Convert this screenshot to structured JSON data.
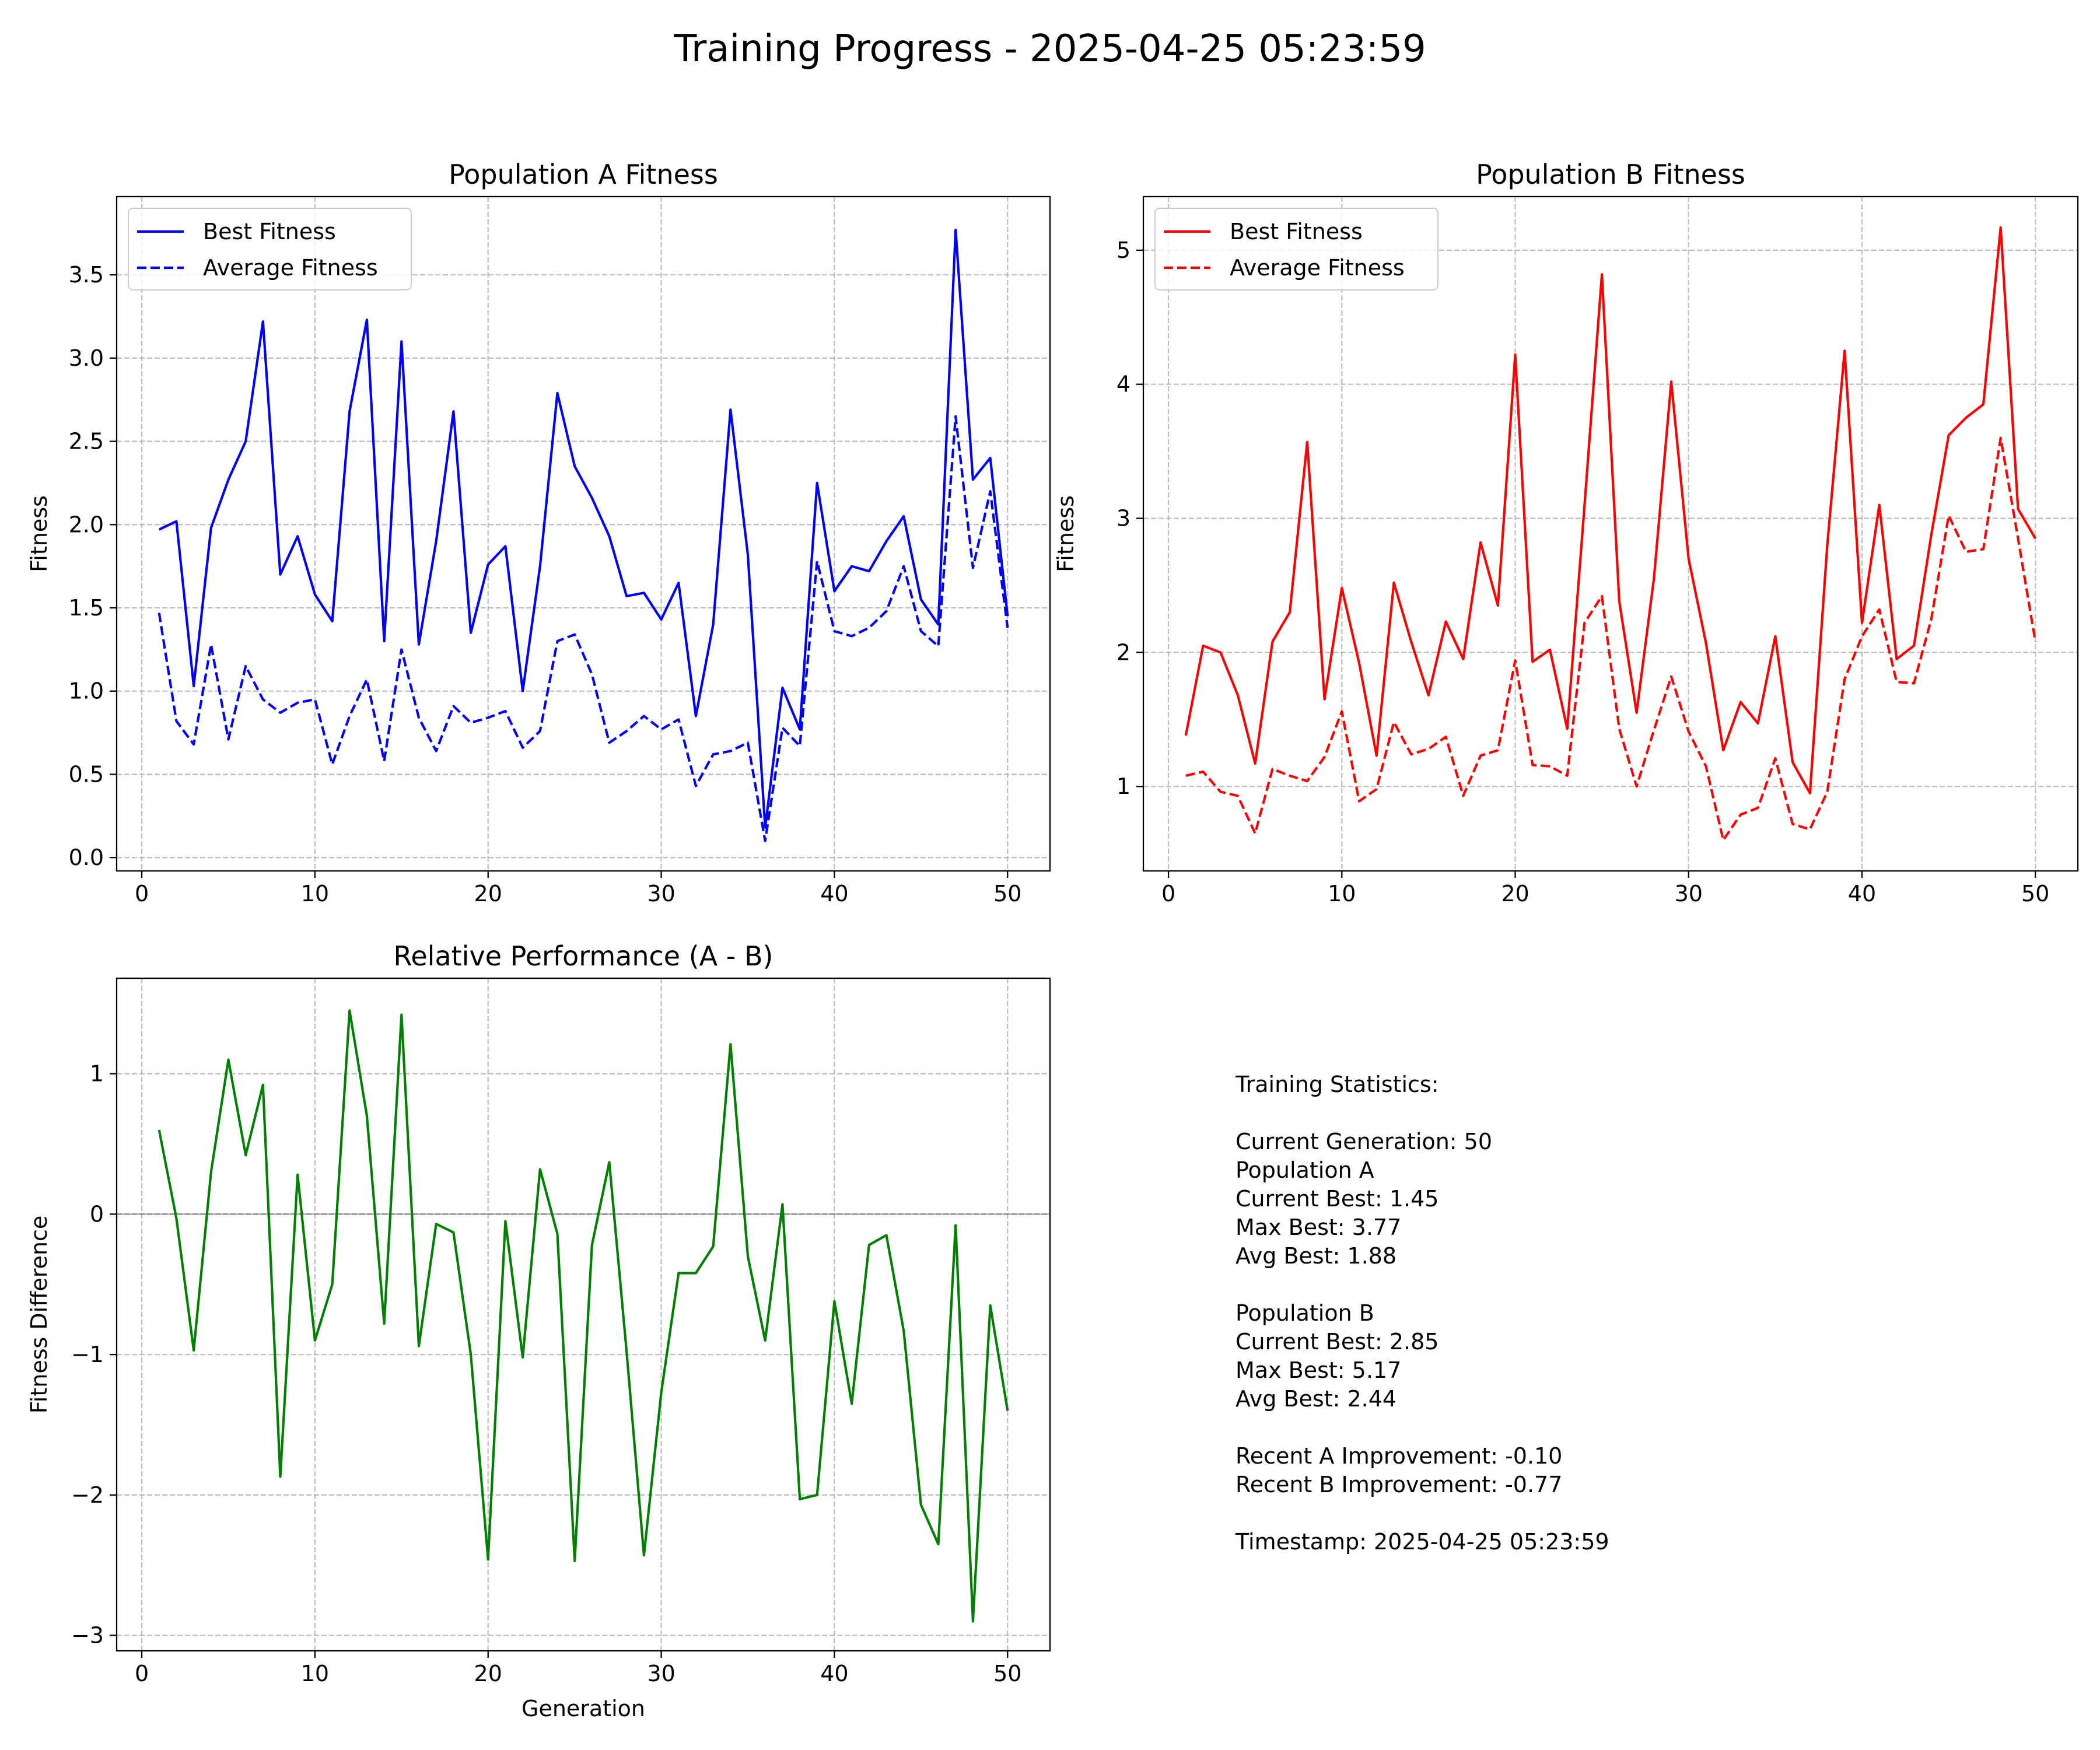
{
  "figure": {
    "title": "Training Progress - 2025-04-25 05:23:59"
  },
  "chart_data": [
    {
      "type": "line",
      "title": "Population A Fitness",
      "xlabel": "",
      "ylabel": "Fitness",
      "xlim": [
        -1.45,
        52.45
      ],
      "ylim": [
        -0.08,
        3.97
      ],
      "xticks": [
        0,
        10,
        20,
        30,
        40,
        50
      ],
      "yticks": [
        0.0,
        0.5,
        1.0,
        1.5,
        2.0,
        2.5,
        3.0,
        3.5
      ],
      "ytick_labels": [
        "0.0",
        "0.5",
        "1.0",
        "1.5",
        "2.0",
        "2.5",
        "3.0",
        "3.5"
      ],
      "grid": true,
      "legend": "upper-left",
      "x": [
        1,
        2,
        3,
        4,
        5,
        6,
        7,
        8,
        9,
        10,
        11,
        12,
        13,
        14,
        15,
        16,
        17,
        18,
        19,
        20,
        21,
        22,
        23,
        24,
        25,
        26,
        27,
        28,
        29,
        30,
        31,
        32,
        33,
        34,
        35,
        36,
        37,
        38,
        39,
        40,
        41,
        42,
        43,
        44,
        45,
        46,
        47,
        48,
        49,
        50
      ],
      "series": [
        {
          "name": "Best Fitness",
          "color": "#0000ff",
          "dash": "solid",
          "values": [
            1.97,
            2.02,
            1.03,
            1.98,
            2.27,
            2.5,
            3.22,
            1.7,
            1.93,
            1.58,
            1.42,
            2.68,
            3.23,
            1.3,
            3.1,
            1.28,
            1.9,
            2.68,
            1.35,
            1.76,
            1.87,
            1.0,
            1.75,
            2.79,
            2.35,
            2.16,
            1.93,
            1.57,
            1.59,
            1.43,
            1.65,
            0.85,
            1.4,
            2.69,
            1.82,
            0.18,
            1.02,
            0.77,
            2.25,
            1.6,
            1.75,
            1.72,
            1.9,
            2.05,
            1.55,
            1.4,
            3.77,
            2.27,
            2.4,
            1.45
          ]
        },
        {
          "name": "Average Fitness",
          "color": "#0000ff",
          "dash": "dashed",
          "values": [
            1.47,
            0.82,
            0.68,
            1.28,
            0.71,
            1.15,
            0.95,
            0.87,
            0.93,
            0.95,
            0.56,
            0.85,
            1.07,
            0.58,
            1.25,
            0.84,
            0.64,
            0.91,
            0.81,
            0.84,
            0.88,
            0.66,
            0.76,
            1.3,
            1.34,
            1.1,
            0.69,
            0.76,
            0.85,
            0.77,
            0.83,
            0.43,
            0.62,
            0.64,
            0.69,
            0.1,
            0.78,
            0.67,
            1.78,
            1.36,
            1.33,
            1.38,
            1.48,
            1.75,
            1.36,
            1.27,
            2.65,
            1.74,
            2.2,
            1.38
          ]
        }
      ]
    },
    {
      "type": "line",
      "title": "Population B Fitness",
      "xlabel": "",
      "ylabel": "Fitness",
      "xlim": [
        -1.45,
        52.45
      ],
      "ylim": [
        0.37,
        5.4
      ],
      "xticks": [
        0,
        10,
        20,
        30,
        40,
        50
      ],
      "yticks": [
        1,
        2,
        3,
        4,
        5
      ],
      "ytick_labels": [
        "1",
        "2",
        "3",
        "4",
        "5"
      ],
      "grid": true,
      "legend": "upper-left",
      "x": [
        1,
        2,
        3,
        4,
        5,
        6,
        7,
        8,
        9,
        10,
        11,
        12,
        13,
        14,
        15,
        16,
        17,
        18,
        19,
        20,
        21,
        22,
        23,
        24,
        25,
        26,
        27,
        28,
        29,
        30,
        31,
        32,
        33,
        34,
        35,
        36,
        37,
        38,
        39,
        40,
        41,
        42,
        43,
        44,
        45,
        46,
        47,
        48,
        49,
        50
      ],
      "series": [
        {
          "name": "Best Fitness",
          "color": "#ff0000",
          "dash": "solid",
          "values": [
            1.38,
            2.05,
            2.0,
            1.68,
            1.17,
            2.08,
            2.3,
            3.57,
            1.65,
            2.48,
            1.92,
            1.23,
            2.52,
            2.08,
            1.68,
            2.23,
            1.95,
            2.82,
            2.35,
            4.22,
            1.93,
            2.02,
            1.43,
            3.1,
            4.82,
            2.38,
            1.55,
            2.55,
            4.02,
            2.7,
            2.07,
            1.27,
            1.63,
            1.47,
            2.12,
            1.18,
            0.95,
            2.8,
            4.25,
            2.22,
            3.1,
            1.95,
            2.05,
            2.88,
            3.62,
            3.75,
            3.85,
            5.17,
            3.07,
            2.85
          ]
        },
        {
          "name": "Average Fitness",
          "color": "#ff0000",
          "dash": "dashed",
          "values": [
            1.08,
            1.11,
            0.96,
            0.93,
            0.65,
            1.13,
            1.08,
            1.04,
            1.22,
            1.56,
            0.89,
            0.98,
            1.48,
            1.24,
            1.28,
            1.37,
            0.93,
            1.23,
            1.27,
            1.94,
            1.16,
            1.15,
            1.08,
            2.22,
            2.42,
            1.43,
            1.0,
            1.42,
            1.82,
            1.41,
            1.15,
            0.6,
            0.79,
            0.84,
            1.21,
            0.72,
            0.68,
            0.96,
            1.8,
            2.12,
            2.32,
            1.78,
            1.77,
            2.25,
            3.02,
            2.75,
            2.77,
            3.6,
            2.85,
            2.08
          ]
        }
      ]
    },
    {
      "type": "line",
      "title": "Relative Performance (A - B)",
      "xlabel": "Generation",
      "ylabel": "Fitness Difference",
      "xlim": [
        -1.45,
        52.45
      ],
      "ylim": [
        -3.11,
        1.68
      ],
      "xticks": [
        0,
        10,
        20,
        30,
        40,
        50
      ],
      "yticks": [
        1,
        0,
        -1,
        -2,
        -3
      ],
      "ytick_labels": [
        "1",
        "0",
        "−1",
        "−2",
        "−3"
      ],
      "grid": true,
      "zero_line": true,
      "x": [
        1,
        2,
        3,
        4,
        5,
        6,
        7,
        8,
        9,
        10,
        11,
        12,
        13,
        14,
        15,
        16,
        17,
        18,
        19,
        20,
        21,
        22,
        23,
        24,
        25,
        26,
        27,
        28,
        29,
        30,
        31,
        32,
        33,
        34,
        35,
        36,
        37,
        38,
        39,
        40,
        41,
        42,
        43,
        44,
        45,
        46,
        47,
        48,
        49,
        50
      ],
      "series": [
        {
          "color": "#008000",
          "dash": "solid",
          "values": [
            0.6,
            -0.03,
            -0.97,
            0.3,
            1.1,
            0.42,
            0.92,
            -1.87,
            0.28,
            -0.9,
            -0.5,
            1.45,
            0.7,
            -0.78,
            1.42,
            -0.94,
            -0.07,
            -0.13,
            -1.0,
            -2.46,
            -0.05,
            -1.02,
            0.32,
            -0.14,
            -2.47,
            -0.22,
            0.37,
            -0.98,
            -2.43,
            -1.27,
            -0.42,
            -0.42,
            -0.23,
            1.21,
            -0.3,
            -0.9,
            0.07,
            -2.03,
            -2.0,
            -0.62,
            -1.35,
            -0.22,
            -0.15,
            -0.83,
            -2.07,
            -2.35,
            -0.08,
            -2.9,
            -0.65,
            -1.4
          ]
        }
      ]
    }
  ],
  "stats": {
    "lines": [
      "Training Statistics:",
      "",
      "Current Generation: 50",
      "Population A",
      "  Current Best: 1.45",
      "  Max Best: 3.77",
      "  Avg Best: 1.88",
      "",
      "Population B",
      "  Current Best: 2.85",
      "  Max Best: 5.17",
      "  Avg Best: 2.44",
      "",
      "Recent A Improvement: -0.10",
      "Recent B Improvement: -0.77",
      "",
      "Timestamp: 2025-04-25 05:23:59"
    ]
  }
}
